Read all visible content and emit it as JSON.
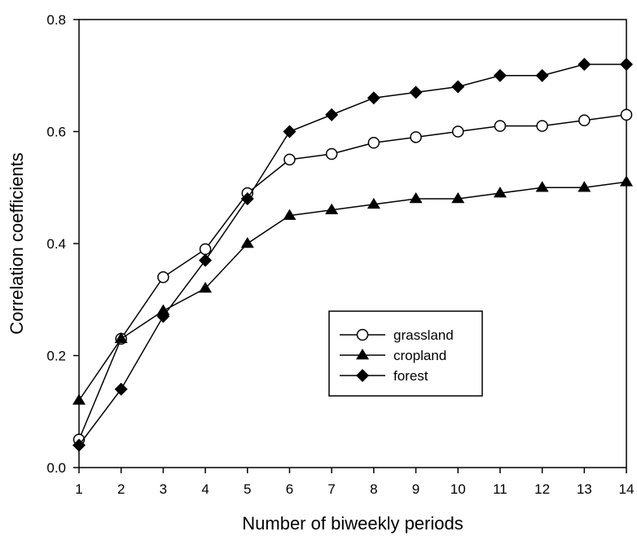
{
  "chart_data": {
    "type": "line",
    "xlabel": "Number of biweekly periods",
    "ylabel": "Correlation coefficients",
    "xlim": [
      1,
      14
    ],
    "ylim": [
      0,
      0.8
    ],
    "x": [
      1,
      2,
      3,
      4,
      5,
      6,
      7,
      8,
      9,
      10,
      11,
      12,
      13,
      14
    ],
    "xticks": [
      "1",
      "2",
      "3",
      "4",
      "5",
      "6",
      "7",
      "8",
      "9",
      "10",
      "11",
      "12",
      "13",
      "14"
    ],
    "yticks": [
      "0.0",
      "0.2",
      "0.4",
      "0.6",
      "0.8"
    ],
    "ytick_values": [
      0,
      0.2,
      0.4,
      0.6,
      0.8
    ],
    "grid": false,
    "legend_position": "center-right",
    "series": [
      {
        "name": "grassland",
        "marker": "open-circle",
        "values": [
          0.05,
          0.23,
          0.34,
          0.39,
          0.49,
          0.55,
          0.56,
          0.58,
          0.59,
          0.6,
          0.61,
          0.61,
          0.62,
          0.63
        ]
      },
      {
        "name": "cropland",
        "marker": "filled-triangle",
        "values": [
          0.12,
          0.23,
          0.28,
          0.32,
          0.4,
          0.45,
          0.46,
          0.47,
          0.48,
          0.48,
          0.49,
          0.5,
          0.5,
          0.51
        ]
      },
      {
        "name": "forest",
        "marker": "filled-diamond",
        "values": [
          0.04,
          0.14,
          0.27,
          0.37,
          0.48,
          0.6,
          0.63,
          0.66,
          0.67,
          0.68,
          0.7,
          0.7,
          0.72,
          0.72
        ]
      }
    ]
  }
}
